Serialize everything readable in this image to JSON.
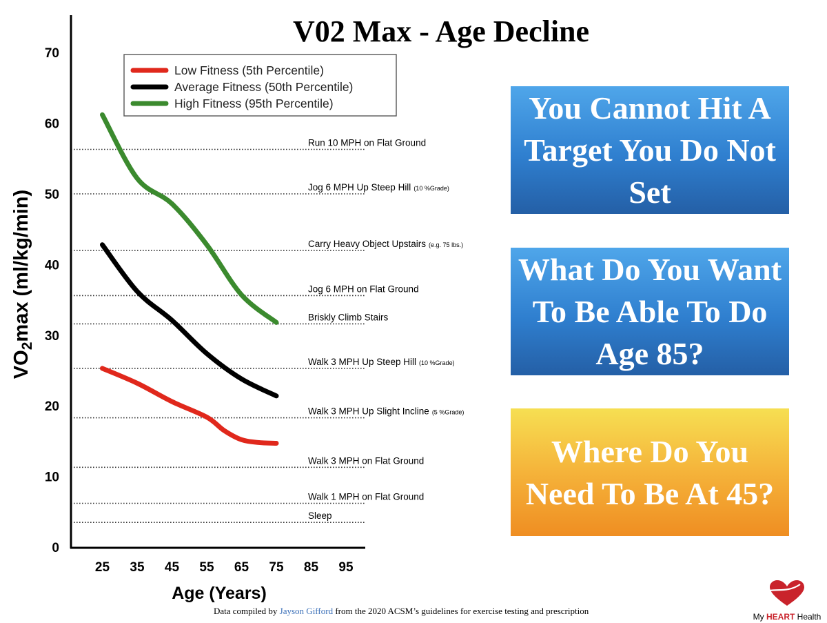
{
  "chart_data": {
    "type": "line",
    "title": "V02 Max - Age Decline",
    "xlabel": "Age (Years)",
    "ylabel": "VO2max (ml/kg/min)",
    "ylabel_parts": {
      "prefix": "VO",
      "sub": "2",
      "suffix": "max (ml/kg/min)"
    },
    "xlim": [
      20,
      100
    ],
    "ylim": [
      0,
      75
    ],
    "x_ticks": [
      25,
      35,
      45,
      55,
      65,
      75,
      85,
      95
    ],
    "y_ticks": [
      0,
      10,
      20,
      30,
      40,
      50,
      60,
      70
    ],
    "grid": false,
    "legend_position": "top-left",
    "series": [
      {
        "name": "Low Fitness (5th Percentile)",
        "color": "#e0281c",
        "x": [
          25,
          35,
          45,
          55,
          60,
          65,
          70,
          75
        ],
        "y": [
          25.3,
          23.2,
          20.6,
          18.4,
          16.5,
          15.2,
          14.8,
          14.7
        ]
      },
      {
        "name": "Average Fitness (50th Percentile)",
        "color": "#000000",
        "x": [
          25,
          35,
          45,
          55,
          65,
          75
        ],
        "y": [
          42.8,
          36.2,
          32.1,
          27.4,
          23.8,
          21.4
        ]
      },
      {
        "name": "High Fitness (95th Percentile)",
        "color": "#3b8a2e",
        "x": [
          25,
          35,
          45,
          55,
          65,
          75
        ],
        "y": [
          61.2,
          52.2,
          48.6,
          42.8,
          35.7,
          31.8
        ]
      }
    ],
    "reference_lines": [
      {
        "y": 56.3,
        "label": "Run 10 MPH on Flat Ground",
        "note": ""
      },
      {
        "y": 50.0,
        "label": "Jog 6 MPH Up Steep Hill",
        "note": "(10 %Grade)"
      },
      {
        "y": 42.0,
        "label": "Carry Heavy Object Upstairs",
        "note": "(e.g. 75 lbs.)"
      },
      {
        "y": 35.6,
        "label": "Jog 6 MPH on Flat Ground",
        "note": ""
      },
      {
        "y": 31.6,
        "label": "Briskly Climb Stairs",
        "note": ""
      },
      {
        "y": 25.3,
        "label": "Walk 3 MPH Up Steep Hill",
        "note": "(10 %Grade)"
      },
      {
        "y": 18.3,
        "label": "Walk 3 MPH Up Slight Incline",
        "note": "(5 %Grade)"
      },
      {
        "y": 11.3,
        "label": "Walk 3 MPH on Flat Ground",
        "note": ""
      },
      {
        "y": 6.2,
        "label": "Walk 1 MPH on Flat Ground",
        "note": ""
      },
      {
        "y": 3.5,
        "label": "Sleep",
        "note": ""
      }
    ]
  },
  "callouts": [
    {
      "text": "You Cannot Hit A Target You Do Not Set",
      "color": "#2f7fcf"
    },
    {
      "text": "What Do You Want To Be Able To Do Age 85?",
      "color": "#2f7fcf"
    },
    {
      "text": "Where Do You Need To Be At 45?",
      "color": "#f5b33a"
    }
  ],
  "footnote": {
    "prefix": "Data compiled by ",
    "author": "Jayson Gifford",
    "suffix": " from the 2020 ACSM’s guidelines for exercise testing and prescription"
  },
  "logo": {
    "prefix": "My ",
    "bold": "HEART",
    "suffix": " Health",
    "icon": "heart-icon",
    "color": "#c9232b"
  }
}
